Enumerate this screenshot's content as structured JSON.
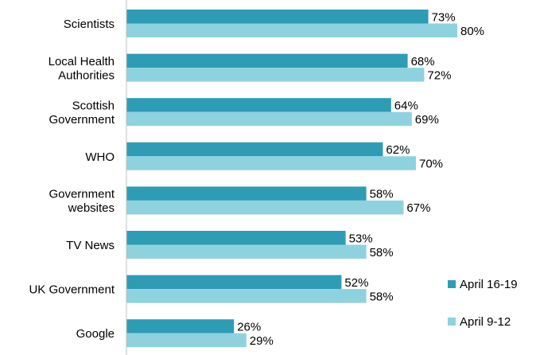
{
  "chart_data": {
    "type": "bar",
    "orientation": "horizontal",
    "categories": [
      [
        "Scientists"
      ],
      [
        "Local Health",
        "Authorities"
      ],
      [
        "Scottish",
        "Government"
      ],
      [
        "WHO"
      ],
      [
        "Government",
        "websites"
      ],
      [
        "TV News"
      ],
      [
        "UK Government"
      ],
      [
        "Google"
      ]
    ],
    "series": [
      {
        "name": "April 16-19",
        "color": "#2e9cb5",
        "values": [
          73,
          68,
          64,
          62,
          58,
          53,
          52,
          26
        ]
      },
      {
        "name": "April 9-12",
        "color": "#8fd2df",
        "values": [
          80,
          72,
          69,
          70,
          67,
          58,
          58,
          29
        ]
      }
    ],
    "value_suffix": "%",
    "xlim": [
      0,
      100
    ],
    "grid": false,
    "legend_position": "right"
  }
}
